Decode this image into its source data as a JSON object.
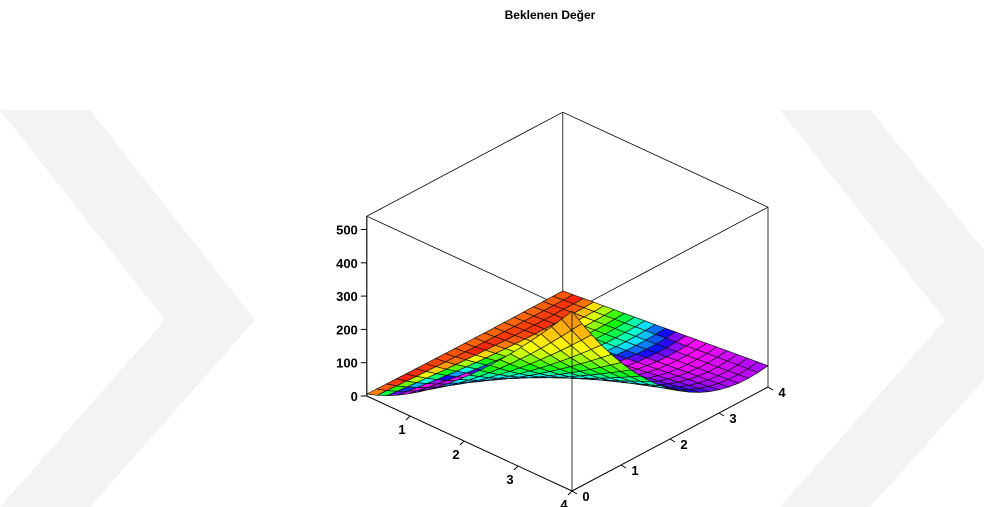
{
  "chart_data": {
    "type": "surface3d",
    "title": "Beklenen Değer",
    "x_ticks": [
      "1",
      "2",
      "3",
      "4"
    ],
    "y_ticks": [
      "0",
      "1",
      "2",
      "3",
      "4"
    ],
    "z_ticks": [
      "0",
      "100",
      "200",
      "300",
      "400",
      "500"
    ],
    "x_range": [
      0.2,
      4
    ],
    "y_range": [
      0,
      4
    ],
    "z_range": [
      0,
      540
    ],
    "grid_divisions": 20,
    "surface_formula": "z = 540 * ((4 - y) / 4)^2 * (x / 4)^1.5 + 4 * y^2 * (x / 4)",
    "surface_peak": {
      "x": 4,
      "y": 0,
      "z": 540
    },
    "colormap": "hue"
  },
  "watermark": {
    "color": "#f3f3f3"
  }
}
